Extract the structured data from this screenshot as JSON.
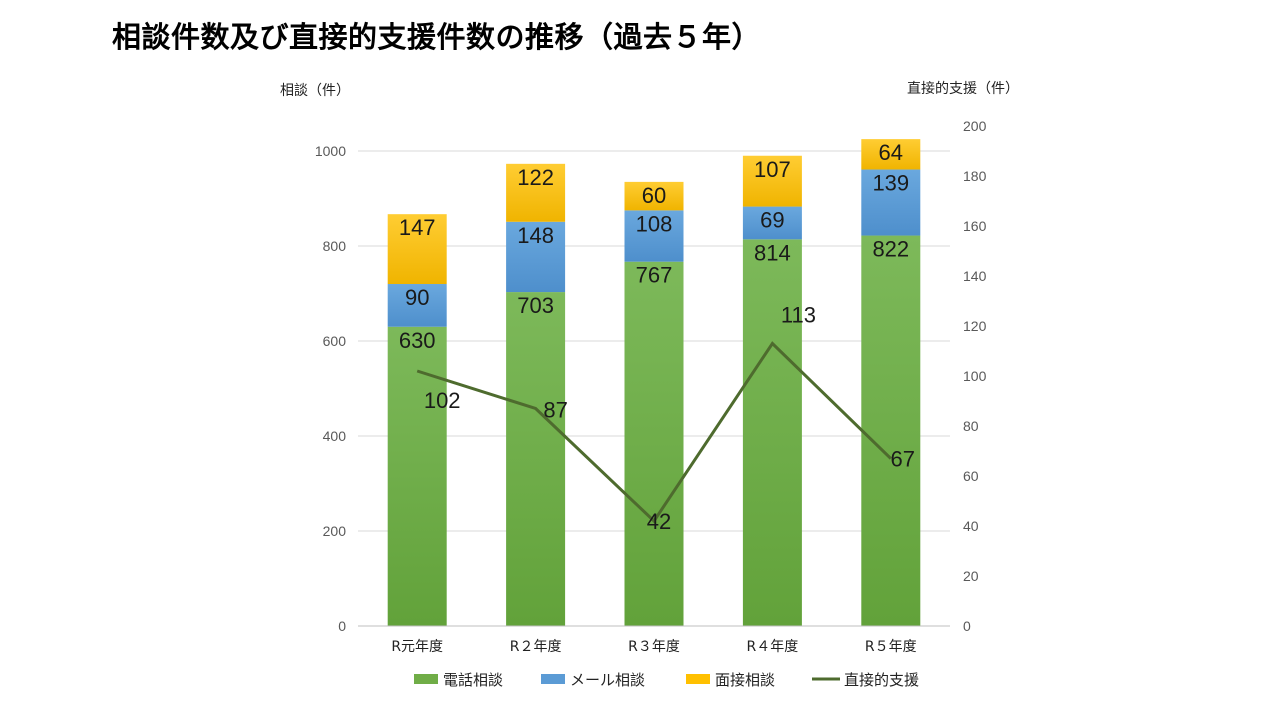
{
  "title": "相談件数及び直接的支援件数の推移（過去５年）",
  "chart_data": {
    "type": "bar",
    "stacked": true,
    "categories": [
      "R元年度",
      "R２年度",
      "R３年度",
      "R４年度",
      "R５年度"
    ],
    "series": [
      {
        "name": "電話相談",
        "values": [
          630,
          703,
          767,
          814,
          822
        ],
        "color": "#70AD47",
        "axis": "left"
      },
      {
        "name": "メール相談",
        "values": [
          90,
          148,
          108,
          69,
          139
        ],
        "color": "#5B9BD5",
        "axis": "left"
      },
      {
        "name": "面接相談",
        "values": [
          147,
          122,
          60,
          107,
          64
        ],
        "color": "#FFC000",
        "axis": "left"
      },
      {
        "name": "直接的支援",
        "type": "line",
        "values": [
          102,
          87,
          42,
          113,
          67
        ],
        "color": "#4E6B2E",
        "axis": "right"
      }
    ],
    "ylabel": "相談（件）",
    "y2label": "直接的支援（件）",
    "ylim": [
      0,
      1000
    ],
    "y2lim": [
      0,
      200
    ],
    "yticks": [
      0,
      200,
      400,
      600,
      800,
      1000
    ],
    "y2ticks": [
      0,
      20,
      40,
      60,
      80,
      100,
      120,
      140,
      160,
      180,
      200
    ],
    "grid": true,
    "legend": "bottom"
  }
}
